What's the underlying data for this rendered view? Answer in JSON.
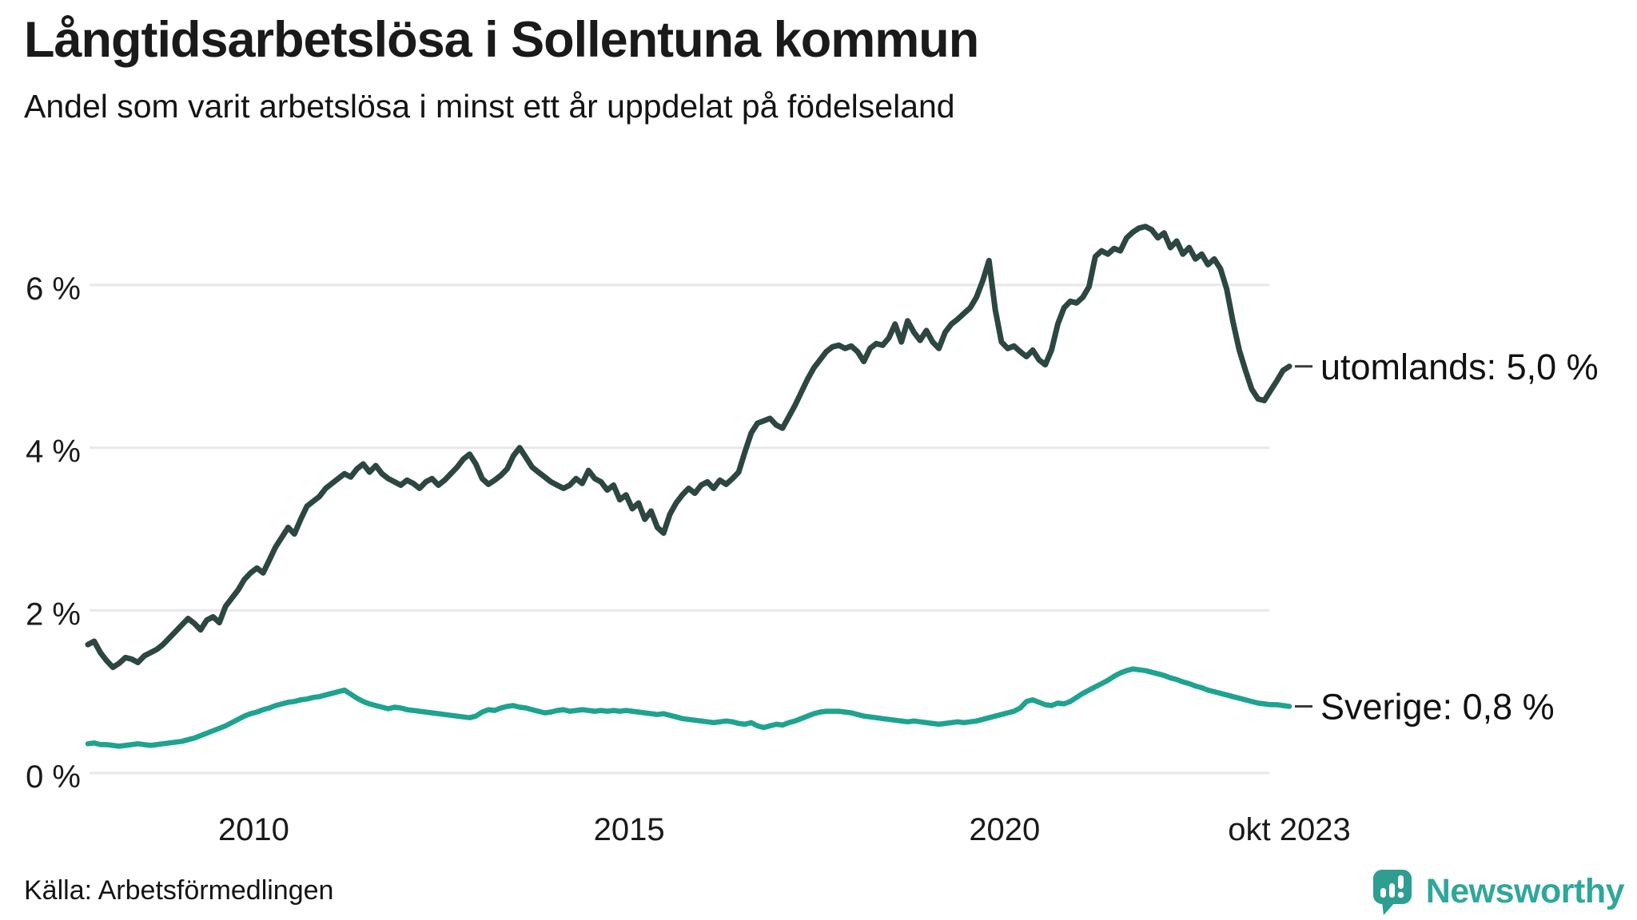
{
  "header": {
    "title": "Långtidsarbetslösa i Sollentuna kommun",
    "subtitle": "Andel som varit arbetslösa i minst ett år uppdelat på födelseland"
  },
  "footer": {
    "source": "Källa: Arbetsförmedlingen",
    "brand": "Newsworthy",
    "brand_color": "#2fa79b",
    "brand_mark_color": "#2e9d92"
  },
  "chart_data": {
    "type": "line",
    "title": "Långtidsarbetslösa i Sollentuna kommun",
    "subtitle": "Andel som varit arbetslösa i minst ett år uppdelat på födelseland",
    "xlabel": "",
    "ylabel": "",
    "x_unit": "monthly observations, Oct 2007 – Oct 2023",
    "x_start": 2007.7917,
    "x_end": 2023.7917,
    "ylim": [
      0,
      7
    ],
    "grid": "horizontal",
    "legend_position": "direct-labels-right",
    "gridline_color": "#e8e8eb",
    "y_ticks": [
      {
        "label": "0 %",
        "v": 0
      },
      {
        "label": "2 %",
        "v": 2
      },
      {
        "label": "4 %",
        "v": 4
      },
      {
        "label": "6 %",
        "v": 6
      }
    ],
    "x_ticks": [
      {
        "label": "2010",
        "t": 2010.0
      },
      {
        "label": "2015",
        "t": 2015.0
      },
      {
        "label": "2020",
        "t": 2020.0
      },
      {
        "label": "okt 2023",
        "t": 2023.7917
      }
    ],
    "series": [
      {
        "key": "utomlands",
        "name": "Födda utomlands",
        "end_label": "utomlands: 5,0 %",
        "end_value": 5.0,
        "color": "#2c4742",
        "values": [
          1.58,
          1.62,
          1.48,
          1.38,
          1.3,
          1.35,
          1.42,
          1.4,
          1.36,
          1.44,
          1.48,
          1.52,
          1.58,
          1.66,
          1.74,
          1.82,
          1.9,
          1.84,
          1.76,
          1.88,
          1.92,
          1.85,
          2.05,
          2.15,
          2.25,
          2.38,
          2.46,
          2.52,
          2.46,
          2.62,
          2.78,
          2.9,
          3.02,
          2.94,
          3.12,
          3.28,
          3.34,
          3.4,
          3.5,
          3.56,
          3.62,
          3.68,
          3.64,
          3.74,
          3.8,
          3.7,
          3.78,
          3.68,
          3.62,
          3.58,
          3.54,
          3.6,
          3.56,
          3.5,
          3.58,
          3.62,
          3.54,
          3.6,
          3.68,
          3.76,
          3.86,
          3.92,
          3.8,
          3.62,
          3.55,
          3.6,
          3.66,
          3.74,
          3.9,
          4.0,
          3.88,
          3.76,
          3.7,
          3.64,
          3.58,
          3.54,
          3.5,
          3.54,
          3.62,
          3.56,
          3.72,
          3.62,
          3.58,
          3.48,
          3.54,
          3.36,
          3.42,
          3.25,
          3.32,
          3.12,
          3.22,
          3.02,
          2.95,
          3.18,
          3.32,
          3.42,
          3.5,
          3.44,
          3.54,
          3.58,
          3.5,
          3.6,
          3.55,
          3.62,
          3.7,
          3.95,
          4.18,
          4.3,
          4.33,
          4.36,
          4.28,
          4.24,
          4.38,
          4.52,
          4.68,
          4.84,
          4.98,
          5.08,
          5.18,
          5.24,
          5.26,
          5.22,
          5.25,
          5.18,
          5.06,
          5.22,
          5.28,
          5.26,
          5.35,
          5.52,
          5.3,
          5.56,
          5.42,
          5.32,
          5.44,
          5.3,
          5.22,
          5.42,
          5.52,
          5.58,
          5.65,
          5.72,
          5.85,
          6.05,
          6.3,
          5.7,
          5.3,
          5.22,
          5.25,
          5.18,
          5.12,
          5.2,
          5.08,
          5.02,
          5.2,
          5.52,
          5.72,
          5.8,
          5.78,
          5.85,
          5.98,
          6.35,
          6.42,
          6.38,
          6.45,
          6.42,
          6.58,
          6.65,
          6.7,
          6.72,
          6.68,
          6.58,
          6.64,
          6.46,
          6.54,
          6.38,
          6.46,
          6.32,
          6.38,
          6.25,
          6.32,
          6.2,
          5.95,
          5.55,
          5.2,
          4.95,
          4.72,
          4.6,
          4.58,
          4.7,
          4.82,
          4.95,
          5.0
        ]
      },
      {
        "key": "sverige",
        "name": "Födda i Sverige",
        "end_label": "Sverige: 0,8 %",
        "end_value": 0.8,
        "color": "#1ea390",
        "values": [
          0.36,
          0.37,
          0.35,
          0.35,
          0.34,
          0.33,
          0.34,
          0.35,
          0.36,
          0.35,
          0.34,
          0.35,
          0.36,
          0.37,
          0.38,
          0.39,
          0.41,
          0.43,
          0.46,
          0.49,
          0.52,
          0.55,
          0.58,
          0.62,
          0.66,
          0.7,
          0.73,
          0.75,
          0.78,
          0.8,
          0.83,
          0.85,
          0.87,
          0.88,
          0.9,
          0.91,
          0.93,
          0.94,
          0.96,
          0.98,
          1.0,
          1.02,
          0.97,
          0.92,
          0.88,
          0.85,
          0.83,
          0.81,
          0.79,
          0.81,
          0.8,
          0.78,
          0.77,
          0.76,
          0.75,
          0.74,
          0.73,
          0.72,
          0.71,
          0.7,
          0.69,
          0.68,
          0.7,
          0.75,
          0.78,
          0.77,
          0.8,
          0.82,
          0.83,
          0.81,
          0.8,
          0.78,
          0.76,
          0.74,
          0.75,
          0.77,
          0.78,
          0.76,
          0.77,
          0.78,
          0.77,
          0.76,
          0.77,
          0.76,
          0.77,
          0.76,
          0.77,
          0.76,
          0.75,
          0.74,
          0.73,
          0.72,
          0.73,
          0.71,
          0.69,
          0.67,
          0.66,
          0.65,
          0.64,
          0.63,
          0.62,
          0.63,
          0.64,
          0.63,
          0.61,
          0.6,
          0.62,
          0.58,
          0.56,
          0.58,
          0.6,
          0.59,
          0.62,
          0.64,
          0.67,
          0.7,
          0.73,
          0.75,
          0.76,
          0.76,
          0.76,
          0.75,
          0.74,
          0.72,
          0.7,
          0.69,
          0.68,
          0.67,
          0.66,
          0.65,
          0.64,
          0.63,
          0.64,
          0.63,
          0.62,
          0.61,
          0.6,
          0.61,
          0.62,
          0.63,
          0.62,
          0.63,
          0.64,
          0.66,
          0.68,
          0.7,
          0.72,
          0.74,
          0.76,
          0.8,
          0.88,
          0.9,
          0.87,
          0.84,
          0.83,
          0.86,
          0.85,
          0.88,
          0.93,
          0.98,
          1.02,
          1.06,
          1.1,
          1.14,
          1.19,
          1.23,
          1.26,
          1.28,
          1.27,
          1.26,
          1.24,
          1.22,
          1.2,
          1.17,
          1.15,
          1.12,
          1.1,
          1.07,
          1.05,
          1.02,
          1.0,
          0.98,
          0.96,
          0.94,
          0.92,
          0.9,
          0.88,
          0.86,
          0.85,
          0.84,
          0.84,
          0.83,
          0.82
        ]
      }
    ]
  }
}
